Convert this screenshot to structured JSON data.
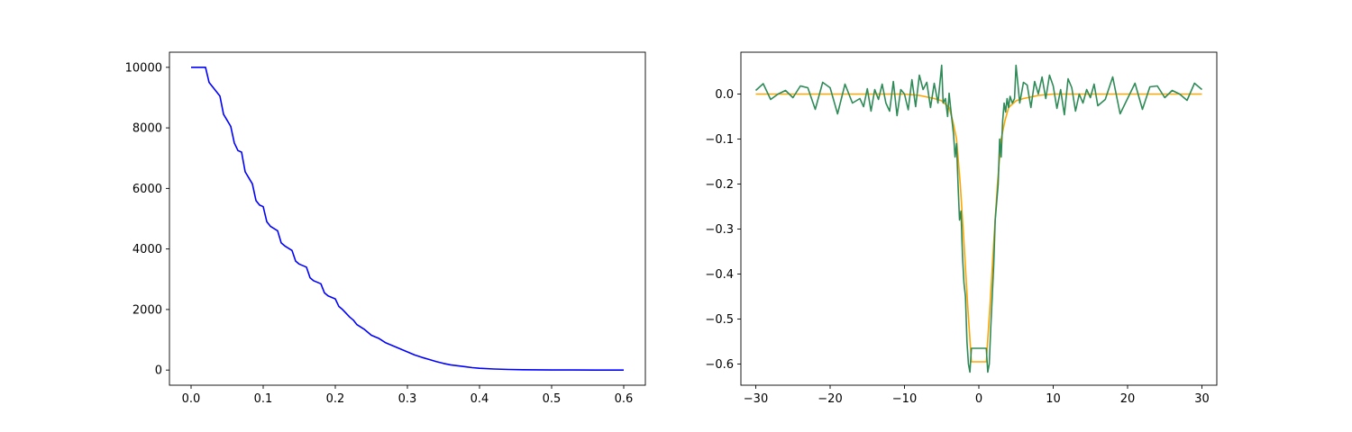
{
  "chart_data": [
    {
      "type": "line",
      "title": "",
      "xlabel": "",
      "ylabel": "",
      "xlim": [
        -0.03,
        0.63
      ],
      "ylim": [
        -500,
        10500
      ],
      "grid": false,
      "x_ticks": [
        "0.0",
        "0.1",
        "0.2",
        "0.3",
        "0.4",
        "0.5",
        "0.6"
      ],
      "x_tick_values": [
        0,
        0.1,
        0.2,
        0.3,
        0.4,
        0.5,
        0.6
      ],
      "y_ticks": [
        "0",
        "2000",
        "4000",
        "6000",
        "8000",
        "10000"
      ],
      "y_tick_values": [
        0,
        2000,
        4000,
        6000,
        8000,
        10000
      ],
      "series": [
        {
          "color": "#0000ff",
          "x": [
            0.0,
            0.02,
            0.025,
            0.03,
            0.04,
            0.045,
            0.05,
            0.055,
            0.06,
            0.065,
            0.07,
            0.075,
            0.08,
            0.085,
            0.09,
            0.095,
            0.1,
            0.105,
            0.11,
            0.12,
            0.125,
            0.13,
            0.14,
            0.145,
            0.15,
            0.16,
            0.165,
            0.17,
            0.18,
            0.185,
            0.19,
            0.2,
            0.205,
            0.21,
            0.22,
            0.225,
            0.23,
            0.24,
            0.25,
            0.26,
            0.27,
            0.28,
            0.29,
            0.3,
            0.31,
            0.32,
            0.33,
            0.34,
            0.35,
            0.36,
            0.37,
            0.38,
            0.39,
            0.4,
            0.42,
            0.44,
            0.46,
            0.48,
            0.5,
            0.53,
            0.56,
            0.6
          ],
          "y": [
            10000,
            10000,
            9500,
            9350,
            9050,
            8450,
            8250,
            8050,
            7500,
            7250,
            7200,
            6550,
            6350,
            6150,
            5600,
            5450,
            5400,
            4900,
            4750,
            4600,
            4200,
            4100,
            3950,
            3600,
            3500,
            3400,
            3050,
            2950,
            2850,
            2550,
            2450,
            2350,
            2100,
            2000,
            1750,
            1650,
            1500,
            1350,
            1150,
            1050,
            900,
            800,
            700,
            600,
            500,
            420,
            350,
            280,
            220,
            170,
            140,
            110,
            80,
            60,
            35,
            20,
            12,
            7,
            4,
            2,
            1,
            0
          ]
        }
      ]
    },
    {
      "type": "line",
      "title": "",
      "xlabel": "",
      "ylabel": "",
      "xlim": [
        -32,
        32
      ],
      "ylim": [
        -0.647,
        0.093
      ],
      "grid": false,
      "x_ticks": [
        "−30",
        "−20",
        "−10",
        "0",
        "10",
        "20",
        "30"
      ],
      "x_tick_values": [
        -30,
        -20,
        -10,
        0,
        10,
        20,
        30
      ],
      "y_ticks": [
        "0.0",
        "−0.1",
        "−0.2",
        "−0.3",
        "−0.4",
        "−0.5",
        "−0.6"
      ],
      "y_tick_values": [
        0.0,
        -0.1,
        -0.2,
        -0.3,
        -0.4,
        -0.5,
        -0.6
      ],
      "series": [
        {
          "color": "#ffa500",
          "x": [
            -30,
            -10,
            -8,
            -6,
            -5,
            -4,
            -3.5,
            -3,
            -2.5,
            -2,
            -1.5,
            -1,
            1,
            1.5,
            2,
            2.5,
            3,
            3.5,
            4,
            5,
            6,
            8,
            10,
            30
          ],
          "y": [
            0,
            0,
            -0.003,
            -0.01,
            -0.015,
            -0.03,
            -0.06,
            -0.1,
            -0.2,
            -0.33,
            -0.47,
            -0.595,
            -0.595,
            -0.47,
            -0.33,
            -0.2,
            -0.1,
            -0.06,
            -0.03,
            -0.015,
            -0.01,
            -0.003,
            0,
            0
          ]
        },
        {
          "color": "#2e8b57",
          "x": [
            -30,
            -29,
            -28,
            -27,
            -26,
            -25,
            -24,
            -23,
            -22,
            -21,
            -20,
            -19,
            -18,
            -17,
            -16,
            -15.5,
            -15,
            -14.5,
            -14,
            -13.5,
            -13,
            -12.5,
            -12,
            -11.5,
            -11,
            -10.5,
            -10,
            -9.5,
            -9,
            -8.5,
            -8,
            -7.5,
            -7,
            -6.5,
            -6,
            -5.5,
            -5,
            -4.8,
            -4.5,
            -4.2,
            -4,
            -3.8,
            -3.6,
            -3.4,
            -3.2,
            -3,
            -2.8,
            -2.6,
            -2.4,
            -2.2,
            -2,
            -1.8,
            -1.6,
            -1.4,
            -1.2,
            -1,
            1,
            1.2,
            1.4,
            1.6,
            1.8,
            2,
            2.2,
            2.4,
            2.6,
            2.8,
            3,
            3.2,
            3.4,
            3.6,
            3.8,
            4,
            4.2,
            4.5,
            4.8,
            5,
            5.5,
            6,
            6.5,
            7,
            7.5,
            8,
            8.5,
            9,
            9.5,
            10,
            10.5,
            11,
            11.5,
            12,
            12.5,
            13,
            13.5,
            14,
            14.5,
            15,
            15.5,
            16,
            17,
            18,
            19,
            20,
            21,
            22,
            23,
            24,
            25,
            26,
            27,
            28,
            29,
            30
          ],
          "y": [
            0.008,
            0.023,
            -0.012,
            0.0,
            0.008,
            -0.008,
            0.018,
            0.014,
            -0.034,
            0.026,
            0.014,
            -0.044,
            0.022,
            -0.02,
            -0.01,
            -0.028,
            0.012,
            -0.038,
            0.01,
            -0.012,
            0.022,
            -0.02,
            -0.038,
            0.028,
            -0.048,
            0.01,
            0.0,
            -0.035,
            0.032,
            -0.028,
            0.042,
            0.01,
            0.026,
            -0.03,
            0.024,
            -0.02,
            0.064,
            -0.02,
            -0.01,
            -0.05,
            0.002,
            -0.03,
            -0.06,
            -0.09,
            -0.14,
            -0.11,
            -0.2,
            -0.28,
            -0.26,
            -0.36,
            -0.42,
            -0.45,
            -0.55,
            -0.6,
            -0.618,
            -0.565,
            -0.565,
            -0.618,
            -0.6,
            -0.52,
            -0.45,
            -0.38,
            -0.28,
            -0.24,
            -0.2,
            -0.1,
            -0.14,
            -0.06,
            -0.02,
            -0.04,
            -0.01,
            -0.03,
            -0.005,
            -0.02,
            -0.01,
            0.064,
            -0.02,
            0.026,
            0.02,
            -0.03,
            0.028,
            0.0,
            0.038,
            -0.01,
            0.042,
            0.018,
            -0.032,
            0.01,
            -0.046,
            0.034,
            0.014,
            -0.038,
            0.0,
            -0.02,
            0.01,
            -0.008,
            0.022,
            -0.026,
            -0.012,
            0.038,
            -0.044,
            -0.01,
            0.024,
            -0.034,
            0.016,
            0.018,
            -0.008,
            0.008,
            0.0,
            -0.014,
            0.024,
            0.01
          ]
        }
      ]
    }
  ]
}
